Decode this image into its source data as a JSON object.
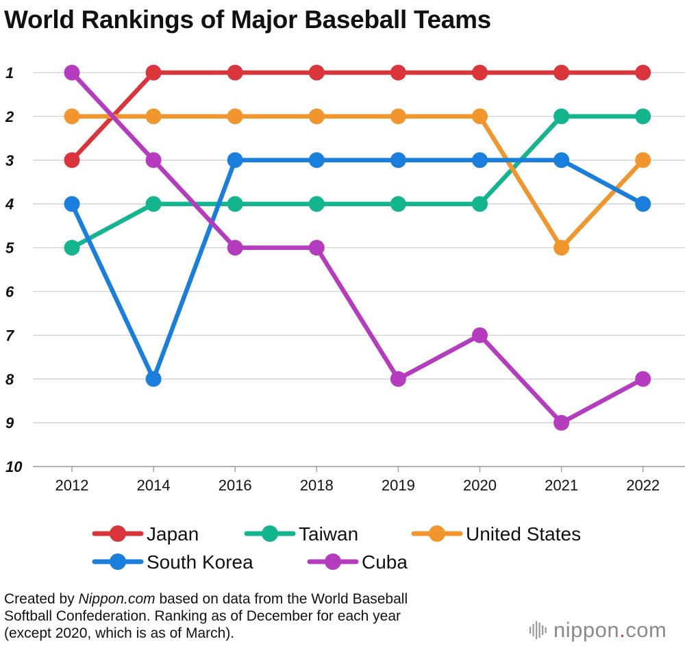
{
  "chart_data": {
    "type": "line",
    "title": "World Rankings of Major Baseball Teams",
    "x": [
      "2012",
      "2014",
      "2016",
      "2018",
      "2019",
      "2020",
      "2021",
      "2022"
    ],
    "y_ticks": [
      "1",
      "2",
      "3",
      "4",
      "5",
      "6",
      "7",
      "8",
      "9",
      "10"
    ],
    "ylim": [
      1,
      10
    ],
    "y_inverted": true,
    "grid": true,
    "legend_position": "bottom",
    "series": [
      {
        "name": "Japan",
        "color": "#d9353a",
        "values": [
          3,
          1,
          1,
          1,
          1,
          1,
          1,
          1
        ]
      },
      {
        "name": "Taiwan",
        "color": "#13b58e",
        "values": [
          5,
          4,
          4,
          4,
          4,
          4,
          2,
          2
        ]
      },
      {
        "name": "United States",
        "color": "#f0962d",
        "values": [
          2,
          2,
          2,
          2,
          2,
          2,
          5,
          3
        ]
      },
      {
        "name": "South Korea",
        "color": "#1a7fdc",
        "values": [
          4,
          8,
          3,
          3,
          3,
          3,
          3,
          4
        ]
      },
      {
        "name": "Cuba",
        "color": "#b53cbe",
        "values": [
          1,
          3,
          5,
          5,
          8,
          7,
          9,
          8
        ]
      }
    ]
  },
  "footnote": {
    "part1": "Created by ",
    "source": "Nippon.com",
    "part2": " based on data from the World Baseball",
    "line2": "Softball Confederation. Ranking as of December for each year",
    "line3": "(except 2020, which is as of March)."
  },
  "brand": {
    "name": "nippon",
    "dot": ".",
    "suffix": "com",
    "icon": "sound-bars-icon"
  }
}
